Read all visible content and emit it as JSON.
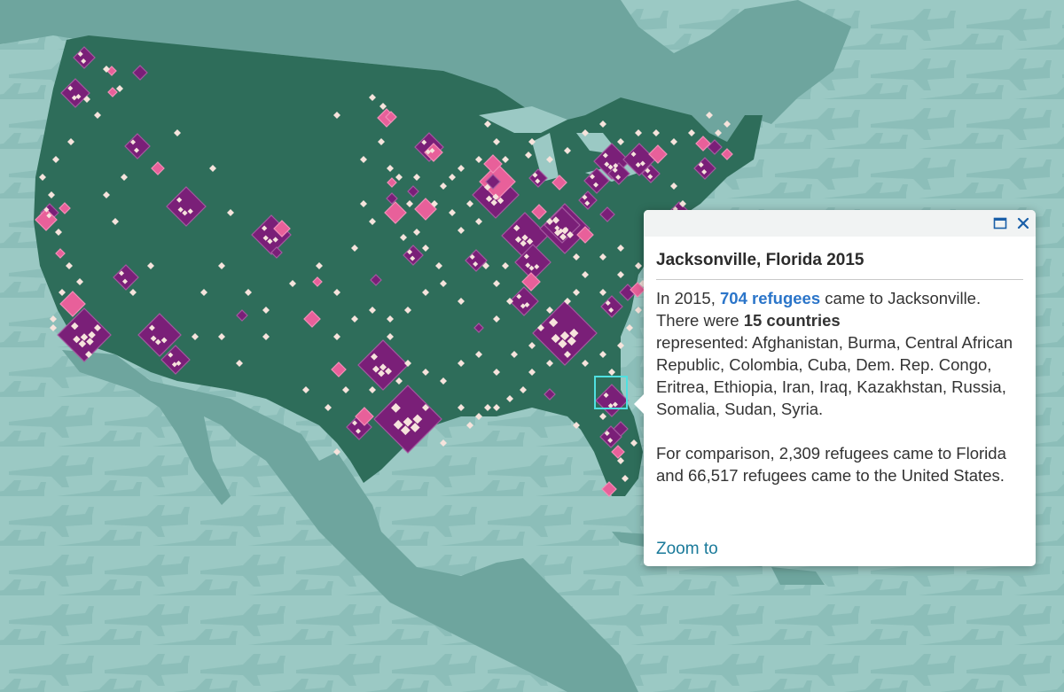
{
  "map": {
    "colors": {
      "water": "#9bc9c4",
      "land_other": "#6ea59e",
      "usa": "#2e6d5a",
      "plane": "#7fb5ae",
      "large": "#7a1f78",
      "medium": "#e8609a",
      "small": "#f6e3dc",
      "selection": "#4fe0e0"
    },
    "symbols": {
      "selected": "Jacksonville"
    }
  },
  "popup": {
    "title": "Jacksonville, Florida 2015",
    "line1_prefix": "In 2015, ",
    "line1_link": "704 refugees",
    "line1_suffix": " came to Jacksonville.",
    "line2_prefix": "There were ",
    "line2_bold": "15 countries",
    "line3": "represented: Afghanistan, Burma, Central African Republic, Colombia, Cuba, Dem. Rep. Congo, Eritrea, Ethiopia, Iran, Iraq, Kazakhstan, Russia, Somalia, Sudan, Syria.",
    "comparison": "For comparison, 2,309 refugees came to Florida and 66,517 refugees came to the United States.",
    "zoom_link": "Zoom to",
    "controls": {
      "maximize_icon": "maximize-icon",
      "close_icon": "close-icon"
    }
  }
}
